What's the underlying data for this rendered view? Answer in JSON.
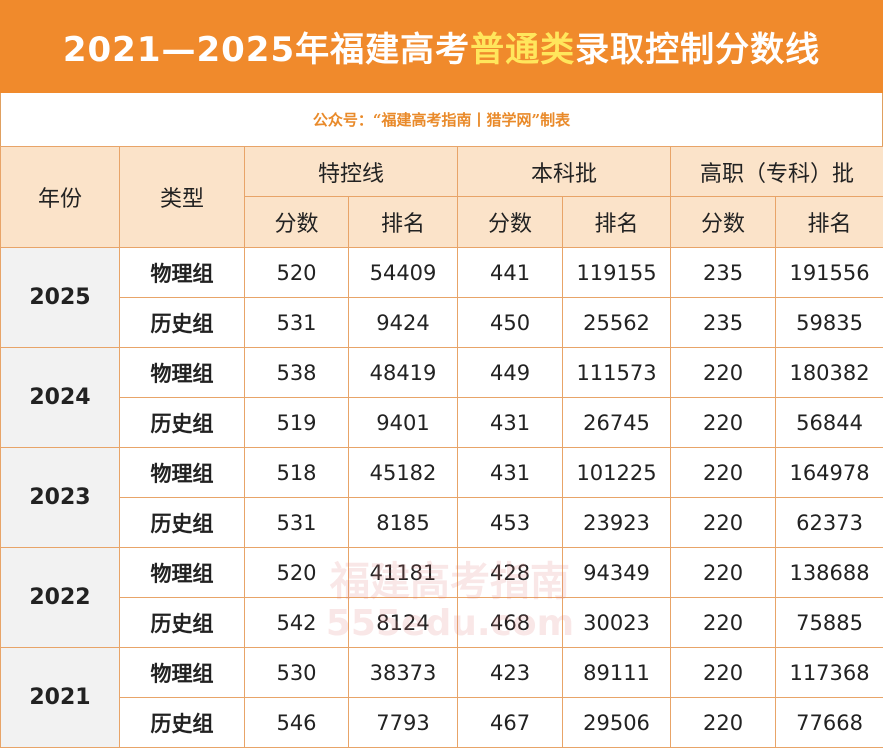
{
  "title": {
    "prefix": "2021—2025年福建高考",
    "highlight": "普通类",
    "suffix": "录取控制分数线"
  },
  "source": "公众号：“福建高考指南丨猎学网”制表",
  "headers": {
    "year": "年份",
    "category": "类型",
    "groups": [
      "特控线",
      "本科批",
      "高职（专科）批"
    ],
    "sub": [
      "分数",
      "排名"
    ]
  },
  "rows": [
    {
      "year": "2025",
      "items": [
        {
          "category": "物理组",
          "values": [
            "520",
            "54409",
            "441",
            "119155",
            "235",
            "191556"
          ]
        },
        {
          "category": "历史组",
          "values": [
            "531",
            "9424",
            "450",
            "25562",
            "235",
            "59835"
          ]
        }
      ]
    },
    {
      "year": "2024",
      "items": [
        {
          "category": "物理组",
          "values": [
            "538",
            "48419",
            "449",
            "111573",
            "220",
            "180382"
          ]
        },
        {
          "category": "历史组",
          "values": [
            "519",
            "9401",
            "431",
            "26745",
            "220",
            "56844"
          ]
        }
      ]
    },
    {
      "year": "2023",
      "items": [
        {
          "category": "物理组",
          "values": [
            "518",
            "45182",
            "431",
            "101225",
            "220",
            "164978"
          ]
        },
        {
          "category": "历史组",
          "values": [
            "531",
            "8185",
            "453",
            "23923",
            "220",
            "62373"
          ]
        }
      ]
    },
    {
      "year": "2022",
      "items": [
        {
          "category": "物理组",
          "values": [
            "520",
            "41181",
            "428",
            "94349",
            "220",
            "138688"
          ]
        },
        {
          "category": "历史组",
          "values": [
            "542",
            "8124",
            "468",
            "30023",
            "220",
            "75885"
          ]
        }
      ]
    },
    {
      "year": "2021",
      "items": [
        {
          "category": "物理组",
          "values": [
            "530",
            "38373",
            "423",
            "89111",
            "220",
            "117368"
          ]
        },
        {
          "category": "历史组",
          "values": [
            "546",
            "7793",
            "467",
            "29506",
            "220",
            "77668"
          ]
        }
      ]
    }
  ],
  "watermark": {
    "text": "福建高考指南",
    "url": "555edu.com"
  },
  "colors": {
    "accent": "#f08a2c",
    "highlight": "#ffe65c",
    "header_bg": "#fbe3c9",
    "year_bg": "#f2f2f2"
  }
}
